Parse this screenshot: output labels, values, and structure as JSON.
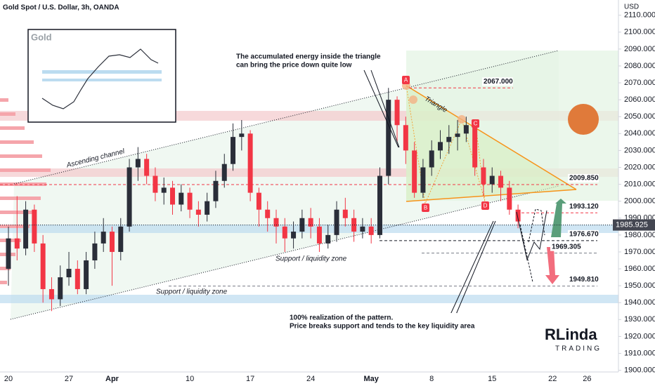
{
  "chart_data": {
    "type": "candlestick",
    "title": "Gold Spot / U.S. Dollar, 3h, OANDA",
    "currency": "USD",
    "up_color": "#2a2e39",
    "down_color": "#f23645",
    "categories": [
      "20",
      null,
      null,
      null,
      null,
      null,
      null,
      "27",
      null,
      null,
      null,
      null,
      "Apr",
      null,
      null,
      null,
      null,
      null,
      null,
      null,
      null,
      "10",
      null,
      null,
      null,
      null,
      null,
      null,
      "17",
      null,
      null,
      null,
      null,
      null,
      null,
      "24",
      null,
      null,
      null,
      null,
      null,
      null,
      "May",
      null,
      null,
      null,
      null,
      null,
      null,
      "8",
      null,
      null,
      null,
      null,
      null,
      null,
      "15",
      null,
      null,
      null,
      null,
      null,
      null,
      "22",
      null,
      null,
      null,
      "26"
    ],
    "open": [
      1960,
      1978,
      1972,
      1995,
      1975,
      1948,
      1942,
      1955,
      1960,
      1948,
      1965,
      1975,
      1982,
      1970,
      1985,
      2020,
      2025,
      2015,
      2005,
      2008,
      1998,
      2005,
      1995,
      1992,
      2000,
      2012,
      2022,
      2038,
      2040,
      2005,
      1995,
      1990,
      1985,
      1978,
      1982,
      1990,
      1985,
      1975,
      1980,
      1995,
      1990,
      1982,
      1985,
      1980,
      2015,
      2060,
      2045,
      2030,
      2005,
      2020,
      2030,
      2035,
      2038,
      2040,
      2045,
      2020,
      2010,
      2015,
      2008,
      1995,
      null,
      null,
      null,
      null,
      null,
      null,
      null,
      null
    ],
    "high": [
      1985,
      2003,
      2000,
      1998,
      1980,
      1955,
      1962,
      1970,
      1965,
      1970,
      1982,
      1990,
      1985,
      1990,
      2025,
      2032,
      2028,
      2020,
      2014,
      2012,
      2010,
      2008,
      2000,
      2005,
      2018,
      2028,
      2046,
      2048,
      2042,
      2008,
      2000,
      1995,
      1990,
      1988,
      1995,
      1996,
      1990,
      1986,
      2000,
      2002,
      1995,
      1990,
      1990,
      2020,
      2067,
      2062,
      2050,
      2035,
      2025,
      2036,
      2042,
      2045,
      2048,
      2050,
      2048,
      2025,
      2020,
      2018,
      2012,
      1998,
      null,
      null,
      null,
      null,
      null,
      null,
      null,
      null
    ],
    "low": [
      1950,
      1965,
      1968,
      1970,
      1940,
      1935,
      1938,
      1950,
      1945,
      1945,
      1960,
      1970,
      1950,
      1965,
      1982,
      2012,
      2010,
      2000,
      1998,
      1992,
      1994,
      1990,
      1985,
      1988,
      1996,
      2008,
      2018,
      2030,
      2000,
      1985,
      1982,
      1975,
      1970,
      1972,
      1978,
      1978,
      1970,
      1972,
      1976,
      1985,
      1976,
      1978,
      1975,
      1978,
      2010,
      2035,
      2022,
      2002,
      2002,
      2015,
      2025,
      2028,
      2030,
      2035,
      2015,
      2003,
      2005,
      2000,
      1992,
      1984,
      null,
      null,
      null,
      null,
      null,
      null,
      null,
      null
    ],
    "close": [
      1978,
      1972,
      1995,
      1975,
      1948,
      1942,
      1955,
      1960,
      1948,
      1965,
      1975,
      1982,
      1970,
      1985,
      2020,
      2025,
      2015,
      2005,
      2008,
      1998,
      2005,
      1995,
      1992,
      2000,
      2012,
      2022,
      2038,
      2040,
      2005,
      1995,
      1990,
      1985,
      1978,
      1982,
      1990,
      1985,
      1975,
      1980,
      1995,
      1990,
      1982,
      1985,
      1980,
      2015,
      2060,
      2045,
      2030,
      2005,
      2020,
      2030,
      2035,
      2038,
      2040,
      2045,
      2020,
      2010,
      2015,
      2008,
      1995,
      1988,
      null,
      null,
      null,
      null,
      null,
      null,
      null,
      null
    ],
    "ylim": [
      1899,
      2119
    ],
    "yticks": [
      {
        "value": 1900,
        "label": "1900.000"
      },
      {
        "value": 1910,
        "label": "1910.000"
      },
      {
        "value": 1920,
        "label": "1920.000"
      },
      {
        "value": 1930,
        "label": "1930.000"
      },
      {
        "value": 1940,
        "label": "1940.000"
      },
      {
        "value": 1950,
        "label": "1950.000"
      },
      {
        "value": 1960,
        "label": "1960.000"
      },
      {
        "value": 1970,
        "label": "1970.000"
      },
      {
        "value": 1980,
        "label": "1980.000"
      },
      {
        "value": 1990,
        "label": "1990.000"
      },
      {
        "value": 2000,
        "label": "2000.000"
      },
      {
        "value": 2010,
        "label": "2010.000"
      },
      {
        "value": 2020,
        "label": "2020.000"
      },
      {
        "value": 2030,
        "label": "2030.000"
      },
      {
        "value": 2040,
        "label": "2040.000"
      },
      {
        "value": 2050,
        "label": "2050.000"
      },
      {
        "value": 2060,
        "label": "2060.000"
      },
      {
        "value": 2070,
        "label": "2070.000"
      },
      {
        "value": 2080,
        "label": "2080.000"
      },
      {
        "value": 2090,
        "label": "2090.000"
      },
      {
        "value": 2100,
        "label": "2100.000"
      },
      {
        "value": 2110,
        "label": "2110.000"
      }
    ],
    "last_price": 1985.925,
    "levels": [
      {
        "value": 2067,
        "label": "2067.000"
      },
      {
        "value": 2009.85,
        "label": "2009.850"
      },
      {
        "value": 1993.12,
        "label": "1993.120"
      },
      {
        "value": 1976.67,
        "label": "1976.670"
      },
      1969.305,
      {
        "value": 1949.81,
        "label": "1949.810"
      }
    ],
    "annotations": {
      "channel": "Ascending channel",
      "triangle": "Triangle",
      "support_1": "Support / liquidity zone",
      "support_2": "Support / liquidity zone",
      "callout_top": [
        "The accumulated energy inside the triangle",
        "can bring the price down quite low"
      ],
      "callout_bottom": [
        "100% realization of the pattern.",
        "Price breaks support and tends to the key liquidity area"
      ],
      "points": [
        "A",
        "B",
        "C",
        "D"
      ],
      "inset_title": "Gold",
      "logo": [
        "RLinda",
        "TRADING"
      ]
    }
  }
}
